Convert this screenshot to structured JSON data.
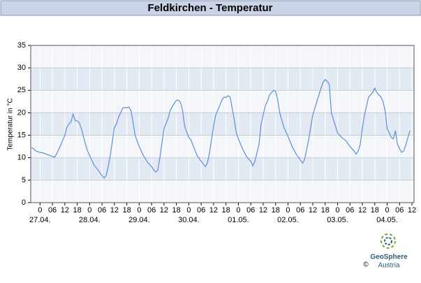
{
  "chart_data": {
    "type": "line",
    "title": "Feldkirchen - Temperatur",
    "ylabel": "Temperatur in °C",
    "x": [
      -4,
      -2,
      0,
      2,
      4,
      6,
      7,
      8,
      10,
      12,
      13,
      14,
      15,
      16,
      17,
      18,
      19,
      20,
      22,
      23,
      24,
      26,
      28,
      30,
      31,
      32,
      33,
      34,
      36,
      37,
      38,
      40,
      41,
      42,
      43,
      44,
      45,
      46,
      48,
      50,
      52,
      54,
      55,
      56,
      57,
      58,
      60,
      62,
      63,
      64,
      66,
      67,
      68,
      69,
      70,
      72,
      73,
      74,
      76,
      78,
      80,
      81,
      82,
      84,
      85,
      86,
      88,
      89,
      90,
      91,
      92,
      93,
      94,
      95,
      96,
      98,
      100,
      102,
      103,
      104,
      106,
      107,
      108,
      109,
      110,
      111,
      112,
      113,
      114,
      115,
      116,
      118,
      120,
      122,
      124,
      126,
      127,
      128,
      130,
      132,
      134,
      135,
      136,
      137,
      138,
      139,
      140,
      141,
      142,
      144,
      146,
      148,
      150,
      152,
      153,
      154,
      155,
      156,
      157,
      158,
      159,
      160,
      161,
      162,
      163,
      164,
      165,
      166,
      167,
      168,
      169,
      170,
      171,
      172,
      173,
      174,
      175,
      176,
      177,
      179
    ],
    "series": [
      {
        "name": "Temperatur",
        "color": "#5b8fd9",
        "values": [
          12.3,
          11.5,
          11.2,
          11,
          10.6,
          10.3,
          10.1,
          10.8,
          12.8,
          15,
          16.8,
          17.5,
          18,
          19.7,
          18.3,
          18.2,
          17.8,
          16.5,
          13,
          11.5,
          10.5,
          8.5,
          7.3,
          6,
          5.5,
          6,
          8,
          10.5,
          16.8,
          17.5,
          19,
          21,
          21.2,
          21.1,
          21.3,
          20.5,
          18,
          15,
          12.5,
          10.5,
          9,
          8,
          7.3,
          6.8,
          7.2,
          10,
          16.5,
          18.8,
          20.5,
          21.4,
          22.8,
          22.8,
          22.3,
          20.5,
          17,
          14.5,
          14,
          12.8,
          10.5,
          9.2,
          8,
          8.8,
          11,
          17,
          19.5,
          20.5,
          22.8,
          23.5,
          23.4,
          23.8,
          23.5,
          21,
          18.5,
          15.5,
          14.2,
          12,
          10.2,
          9.2,
          8.2,
          9.2,
          13,
          17.5,
          19.5,
          21.5,
          22.5,
          23.9,
          24.5,
          25,
          24.8,
          23,
          20,
          16.8,
          14.8,
          12.5,
          10.8,
          9.5,
          8.8,
          9.5,
          14,
          19.5,
          22.5,
          24,
          25.5,
          26.8,
          27.4,
          27,
          26.3,
          20,
          18.5,
          15.5,
          14.5,
          13.8,
          12.5,
          11.5,
          10.8,
          11.5,
          13,
          16.5,
          19.5,
          21.5,
          23.5,
          24,
          24.5,
          25.5,
          24.5,
          24,
          23.5,
          22.5,
          20.5,
          16.5,
          15.5,
          14.5,
          14.2,
          16,
          13,
          12,
          11.2,
          11.5,
          12.8,
          16
        ]
      }
    ],
    "xlim": [
      -4.5,
      181
    ],
    "ylim": [
      0,
      35
    ],
    "yticks": [
      0,
      5,
      10,
      15,
      20,
      25,
      30,
      35
    ],
    "xticks": [
      0,
      {
        "value": 6,
        "label": "06"
      },
      12,
      18,
      {
        "value": 24,
        "label": "0"
      },
      {
        "value": 30,
        "label": "06"
      },
      {
        "value": 36,
        "label": "12"
      },
      {
        "value": 42,
        "label": "18"
      },
      {
        "value": 48,
        "label": "0"
      },
      {
        "value": 54,
        "label": "06"
      },
      {
        "value": 60,
        "label": "12"
      },
      {
        "value": 66,
        "label": "18"
      },
      {
        "value": 72,
        "label": "0"
      },
      {
        "value": 78,
        "label": "06"
      },
      {
        "value": 84,
        "label": "12"
      },
      {
        "value": 90,
        "label": "18"
      },
      {
        "value": 96,
        "label": "0"
      },
      {
        "value": 102,
        "label": "06"
      },
      {
        "value": 108,
        "label": "12"
      },
      {
        "value": 114,
        "label": "18"
      },
      {
        "value": 120,
        "label": "0"
      },
      {
        "value": 126,
        "label": "06"
      },
      {
        "value": 132,
        "label": "12"
      },
      {
        "value": 138,
        "label": "18"
      },
      {
        "value": 144,
        "label": "0"
      },
      {
        "value": 150,
        "label": "06"
      },
      {
        "value": 156,
        "label": "12"
      },
      {
        "value": 162,
        "label": "18"
      },
      {
        "value": 168,
        "label": "0"
      },
      {
        "value": 174,
        "label": "06"
      },
      {
        "value": 180,
        "label": "12"
      }
    ],
    "xdates": [
      {
        "value": 0,
        "label": "27.04."
      },
      {
        "value": 24,
        "label": "28.04."
      },
      {
        "value": 48,
        "label": "29.04."
      },
      {
        "value": 72,
        "label": "30.04."
      },
      {
        "value": 96,
        "label": "01.05."
      },
      {
        "value": 120,
        "label": "02.05."
      },
      {
        "value": 144,
        "label": "03.05."
      },
      {
        "value": 168,
        "label": "04.05."
      }
    ],
    "grid": true
  },
  "footer": {
    "copyright": "©",
    "logo_name": "GeoSphere",
    "logo_sub": "Austria"
  }
}
